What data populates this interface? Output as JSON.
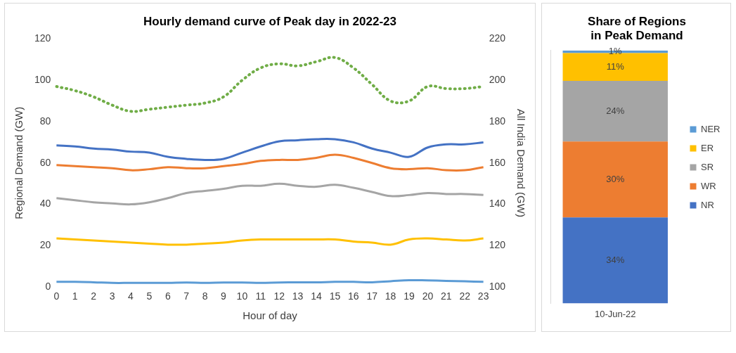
{
  "chart_data": [
    {
      "type": "line",
      "title": "Hourly demand curve of Peak day in 2022-23",
      "x_label": "Hour of day",
      "y_label": "Regional Demand (GW)",
      "y2_label": "All India Demand (GW)",
      "categories": [
        "0",
        "1",
        "2",
        "3",
        "4",
        "5",
        "6",
        "7",
        "8",
        "9",
        "10",
        "11",
        "12",
        "13",
        "14",
        "15",
        "16",
        "17",
        "18",
        "19",
        "20",
        "21",
        "22",
        "23"
      ],
      "series": [
        {
          "color": "#4472c4",
          "values": [
            68.5,
            68,
            67,
            66.5,
            65.5,
            65,
            63,
            62,
            61.5,
            62,
            65,
            68,
            70.5,
            71,
            71.5,
            71.5,
            70,
            67,
            65,
            63,
            67.5,
            69,
            69,
            70
          ]
        },
        {
          "color": "#ed7d31",
          "values": [
            59,
            58.5,
            58,
            57.5,
            56.5,
            57,
            58,
            57.5,
            57.5,
            58.5,
            59.5,
            61,
            61.5,
            61.5,
            62.5,
            64,
            62.5,
            60,
            57.5,
            57,
            57.5,
            56.5,
            56.5,
            58
          ]
        },
        {
          "color": "#a5a5a5",
          "values": [
            43,
            42,
            41,
            40.5,
            40,
            41,
            43,
            45.5,
            46.5,
            47.5,
            49,
            49,
            50,
            49,
            48.5,
            49.5,
            48,
            46,
            44,
            44.5,
            45.5,
            45,
            45,
            44.5
          ]
        },
        {
          "color": "#ffc000",
          "values": [
            23.5,
            23,
            22.5,
            22,
            21.5,
            21,
            20.5,
            20.5,
            21,
            21.5,
            22.5,
            23,
            23,
            23,
            23,
            23,
            22,
            21.5,
            20.5,
            23,
            23.5,
            23,
            22.5,
            23.5
          ]
        },
        {
          "color": "#5b9bd5",
          "values": [
            2.5,
            2.5,
            2.3,
            2,
            2,
            2,
            2,
            2.2,
            2,
            2.2,
            2.2,
            2,
            2.2,
            2.3,
            2.3,
            2.5,
            2.5,
            2.3,
            2.8,
            3.3,
            3.2,
            3,
            2.8,
            2.5
          ]
        },
        {
          "color": "#70ad47",
          "line_style": "dotted",
          "axis": "y2",
          "values": [
            197,
            195,
            192,
            188,
            185,
            186,
            187,
            188,
            189,
            192,
            200,
            206,
            208,
            207,
            209,
            211,
            206,
            198,
            190,
            190,
            197,
            196,
            196,
            197
          ]
        }
      ],
      "ylim": [
        0,
        120
      ],
      "yticks": [
        0,
        20,
        40,
        60,
        80,
        100,
        120
      ],
      "y2lim": [
        100,
        220
      ],
      "y2ticks": [
        100,
        120,
        140,
        160,
        180,
        200,
        220
      ],
      "grid": false
    },
    {
      "type": "bar",
      "title": "Share of Regions in Peak Demand",
      "categories": [
        "10-Jun-22"
      ],
      "series": [
        {
          "name": "NR",
          "color": "#4472c4",
          "values": [
            34
          ],
          "value_labels": [
            "34%"
          ]
        },
        {
          "name": "WR",
          "color": "#ed7d31",
          "values": [
            30
          ],
          "value_labels": [
            "30%"
          ]
        },
        {
          "name": "SR",
          "color": "#a5a5a5",
          "values": [
            24
          ],
          "value_labels": [
            "24%"
          ]
        },
        {
          "name": "ER",
          "color": "#ffc000",
          "values": [
            11
          ],
          "value_labels": [
            "11%"
          ]
        },
        {
          "name": "NER",
          "color": "#5b9bd5",
          "values": [
            1
          ],
          "value_labels": [
            "1%"
          ]
        }
      ],
      "ylim": [
        0,
        100
      ],
      "stacked": true,
      "data_labels": true,
      "legend": "right",
      "tick_labels": "x",
      "grid": false
    }
  ]
}
